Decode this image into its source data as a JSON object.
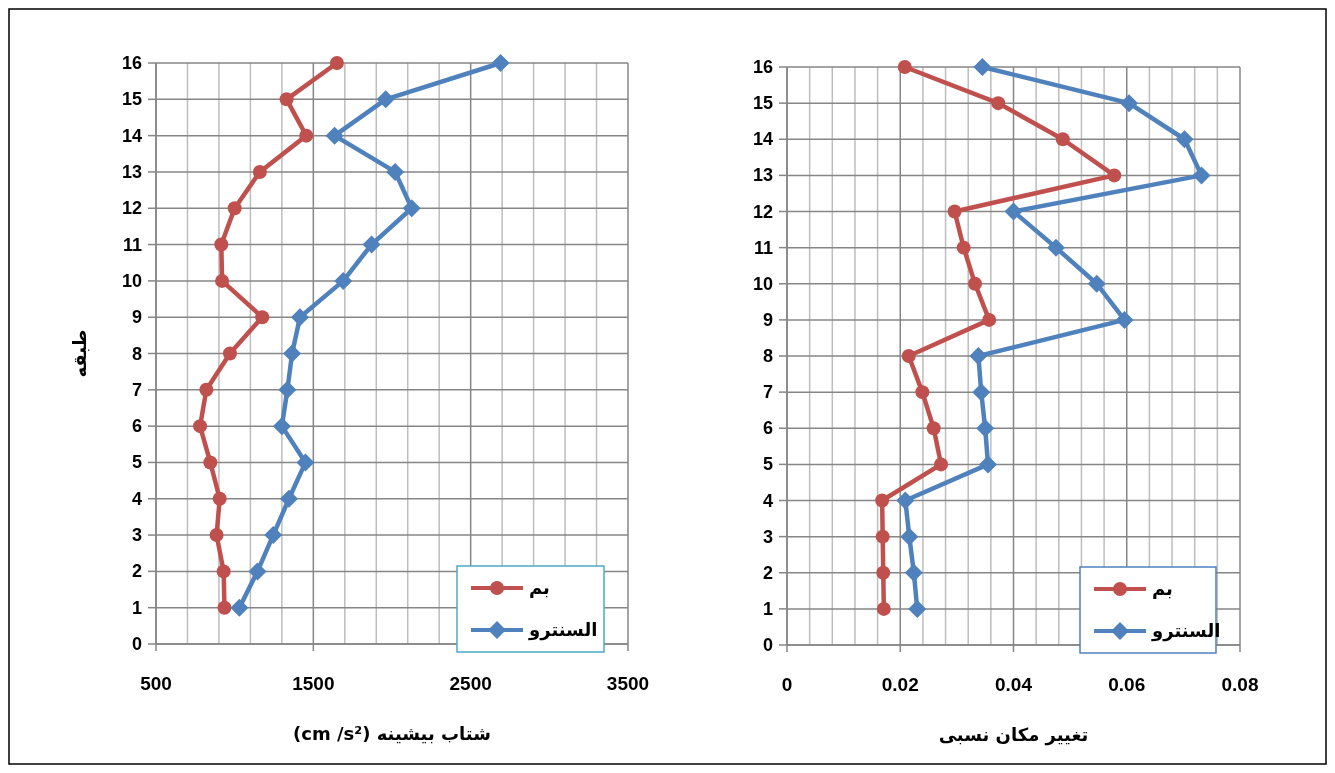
{
  "chart_data": [
    {
      "type": "line",
      "xlabel": "شتاب بیشینه (cm /s²)",
      "ylabel": "طبقه",
      "xlim": [
        500,
        3500
      ],
      "xticks": [
        500,
        {
          "value": 700,
          "label": null
        },
        {
          "value": 900,
          "label": null
        },
        {
          "value": 1100,
          "label": null
        },
        {
          "value": 1300,
          "label": null
        },
        1500,
        {
          "value": 1700,
          "label": null
        },
        {
          "value": 1900,
          "label": null
        },
        {
          "value": 2100,
          "label": null
        },
        {
          "value": 2300,
          "label": null
        },
        2500,
        {
          "value": 2700,
          "label": null
        },
        {
          "value": 2900,
          "label": null
        },
        {
          "value": 3100,
          "label": null
        },
        {
          "value": 3300,
          "label": null
        },
        3500
      ],
      "ylim": [
        0,
        16
      ],
      "yticks": [
        0,
        1,
        2,
        3,
        4,
        5,
        6,
        7,
        8,
        9,
        10,
        11,
        12,
        13,
        14,
        15,
        16
      ],
      "grid": true,
      "legend": "bottom right",
      "series": [
        {
          "name": "بم",
          "color": "#c0504d",
          "marker": "circle",
          "x": [
            935,
            930,
            885,
            905,
            845,
            780,
            820,
            970,
            1175,
            920,
            915,
            1000,
            1160,
            1455,
            1330,
            1650
          ],
          "values": [
            1,
            2,
            3,
            4,
            5,
            6,
            7,
            8,
            9,
            10,
            11,
            12,
            13,
            14,
            15,
            16
          ]
        },
        {
          "name": "السنترو",
          "color": "#4f81bd",
          "marker": "diamond",
          "x": [
            1030,
            1145,
            1245,
            1345,
            1450,
            1300,
            1335,
            1365,
            1415,
            1690,
            1870,
            2125,
            2020,
            1635,
            1960,
            2690
          ],
          "values": [
            1,
            2,
            3,
            4,
            5,
            6,
            7,
            8,
            9,
            10,
            11,
            12,
            13,
            14,
            15,
            16
          ]
        }
      ]
    },
    {
      "type": "line",
      "xlabel": "تغییر مکان نسبی",
      "xlim": [
        0,
        0.08
      ],
      "xticks": [
        0,
        {
          "value": 0.004,
          "label": null
        },
        {
          "value": 0.008,
          "label": null
        },
        {
          "value": 0.012,
          "label": null
        },
        {
          "value": 0.016,
          "label": null
        },
        0.02,
        {
          "value": 0.024,
          "label": null
        },
        {
          "value": 0.028,
          "label": null
        },
        {
          "value": 0.032,
          "label": null
        },
        {
          "value": 0.036,
          "label": null
        },
        0.04,
        {
          "value": 0.044,
          "label": null
        },
        {
          "value": 0.048,
          "label": null
        },
        {
          "value": 0.052,
          "label": null
        },
        {
          "value": 0.056,
          "label": null
        },
        0.06,
        {
          "value": 0.064,
          "label": null
        },
        {
          "value": 0.068,
          "label": null
        },
        {
          "value": 0.072,
          "label": null
        },
        {
          "value": 0.076,
          "label": null
        },
        0.08
      ],
      "ylim": [
        0,
        16
      ],
      "yticks": [
        0,
        1,
        2,
        3,
        4,
        5,
        6,
        7,
        8,
        9,
        10,
        11,
        12,
        13,
        14,
        15,
        16
      ],
      "grid": true,
      "legend": "bottom right",
      "series": [
        {
          "name": "بم",
          "color": "#c0504d",
          "marker": "circle",
          "x": [
            0.0171,
            0.017,
            0.0169,
            0.0168,
            0.0272,
            0.0259,
            0.0239,
            0.0215,
            0.0357,
            0.0332,
            0.0312,
            0.0296,
            0.0578,
            0.0487,
            0.0373,
            0.0208
          ],
          "values": [
            1,
            2,
            3,
            4,
            5,
            6,
            7,
            8,
            9,
            10,
            11,
            12,
            13,
            14,
            15,
            16
          ]
        },
        {
          "name": "السنترو",
          "color": "#4f81bd",
          "marker": "diamond",
          "x": [
            0.023,
            0.0224,
            0.0216,
            0.0209,
            0.0355,
            0.035,
            0.0343,
            0.0338,
            0.0596,
            0.0547,
            0.0475,
            0.04,
            0.0732,
            0.0702,
            0.0604,
            0.0345
          ],
          "values": [
            1,
            2,
            3,
            4,
            5,
            6,
            7,
            8,
            9,
            10,
            11,
            12,
            13,
            14,
            15,
            16
          ]
        }
      ]
    }
  ]
}
